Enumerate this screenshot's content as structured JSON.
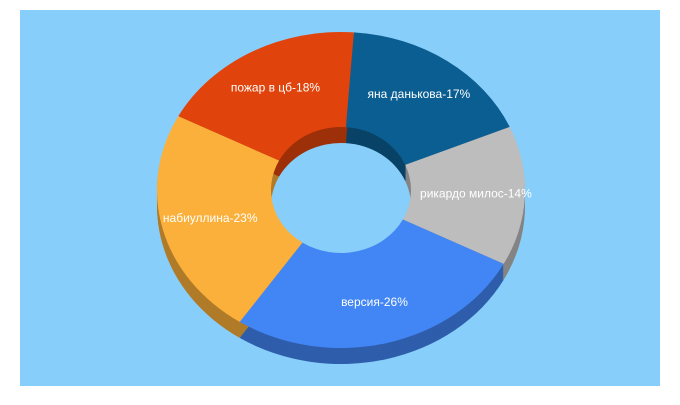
{
  "chart_data": {
    "type": "donut3d",
    "values": [
      17,
      14,
      26,
      23,
      18
    ],
    "value_labels": [
      "яна данькова-17%",
      "рикардо милос-14%",
      "версия-26%",
      "набиуллина-23%",
      "пожар в цб-18%"
    ],
    "colors": [
      "#0b5e92",
      "#bdbdbd",
      "#4285f4",
      "#fbb03b",
      "#e0440c"
    ]
  }
}
